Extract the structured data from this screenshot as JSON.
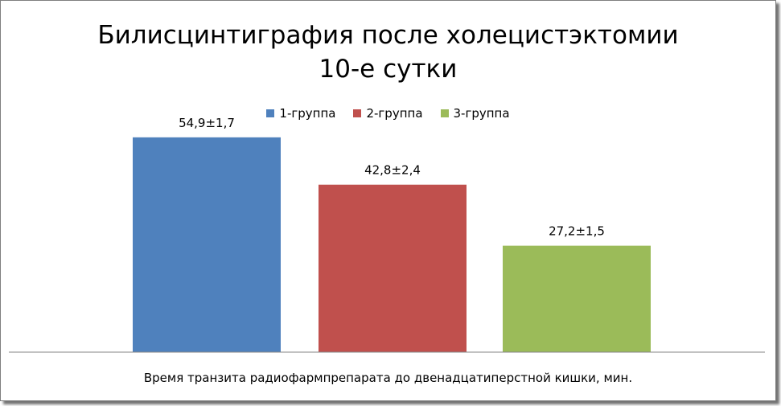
{
  "chart_data": {
    "type": "bar",
    "title_line1": "Билисцинтиграфия после холецистэктомии",
    "title_line2": "10-е сутки",
    "xlabel": "Время транзита радиофармпрепарата до двенадцатиперстной кишки, мин.",
    "ylim": [
      0,
      60
    ],
    "legend_position": "top",
    "grid": false,
    "series": [
      {
        "name": "1-группа",
        "value": 54.9,
        "label": "54,9±1,7",
        "color": "#4f81bd"
      },
      {
        "name": "2-группа",
        "value": 42.8,
        "label": "42,8±2,4",
        "color": "#c0504d"
      },
      {
        "name": "3-группа",
        "value": 27.2,
        "label": "27,2±1,5",
        "color": "#9bbb59"
      }
    ]
  }
}
